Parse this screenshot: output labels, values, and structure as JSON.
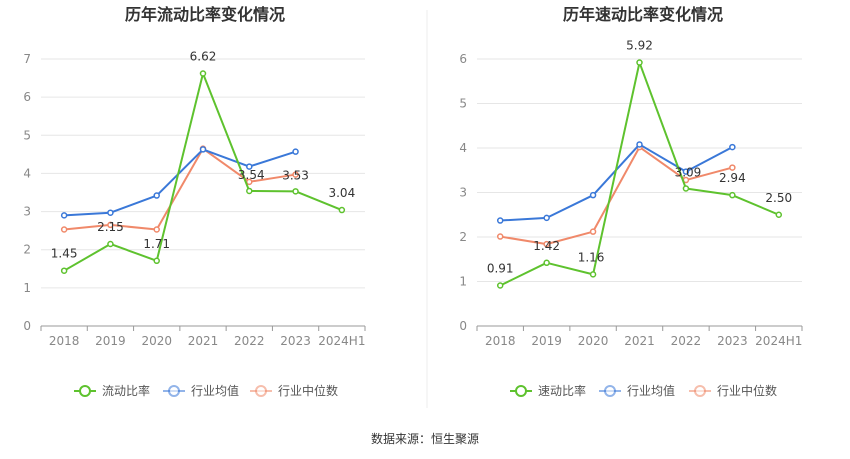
{
  "source_text": "数据来源：恒生聚源",
  "colors": {
    "main": "#5ec22e",
    "avg": "#3a78d8",
    "median": "#f0896a",
    "grid": "#e6e6e6",
    "axis": "#999999"
  },
  "chart_data": [
    {
      "type": "line",
      "title": "历年流动比率变化情况",
      "categories": [
        "2018",
        "2019",
        "2020",
        "2021",
        "2022",
        "2023",
        "2024H1"
      ],
      "ylim": [
        0,
        7
      ],
      "yticks": [
        "0",
        "1",
        "2",
        "3",
        "4",
        "5",
        "6",
        "7"
      ],
      "grid": true,
      "legend_position": "bottom",
      "series": [
        {
          "name": "流动比率",
          "values": [
            1.45,
            2.15,
            1.71,
            6.62,
            3.54,
            3.53,
            3.04
          ],
          "labels": [
            "1.45",
            "2.15",
            "1.71",
            "6.62",
            "3.54",
            "3.53",
            "3.04"
          ]
        },
        {
          "name": "行业均值",
          "values": [
            2.9,
            2.97,
            3.42,
            4.63,
            4.18,
            4.57,
            null
          ]
        },
        {
          "name": "行业中位数",
          "values": [
            2.53,
            2.65,
            2.53,
            4.65,
            3.78,
            3.97,
            null
          ]
        }
      ]
    },
    {
      "type": "line",
      "title": "历年速动比率变化情况",
      "categories": [
        "2018",
        "2019",
        "2020",
        "2021",
        "2022",
        "2023",
        "2024H1"
      ],
      "ylim": [
        0,
        6
      ],
      "yticks": [
        "0",
        "1",
        "2",
        "3",
        "4",
        "5",
        "6"
      ],
      "grid": true,
      "legend_position": "bottom",
      "series": [
        {
          "name": "速动比率",
          "values": [
            0.91,
            1.42,
            1.16,
            5.92,
            3.09,
            2.94,
            2.5
          ],
          "labels": [
            "0.91",
            "1.42",
            "1.16",
            "5.92",
            "3.09",
            "2.94",
            "2.50"
          ]
        },
        {
          "name": "行业均值",
          "values": [
            2.37,
            2.43,
            2.94,
            4.08,
            3.47,
            4.02,
            null
          ]
        },
        {
          "name": "行业中位数",
          "values": [
            2.01,
            1.84,
            2.12,
            4.02,
            3.28,
            3.56,
            null
          ]
        }
      ]
    }
  ]
}
